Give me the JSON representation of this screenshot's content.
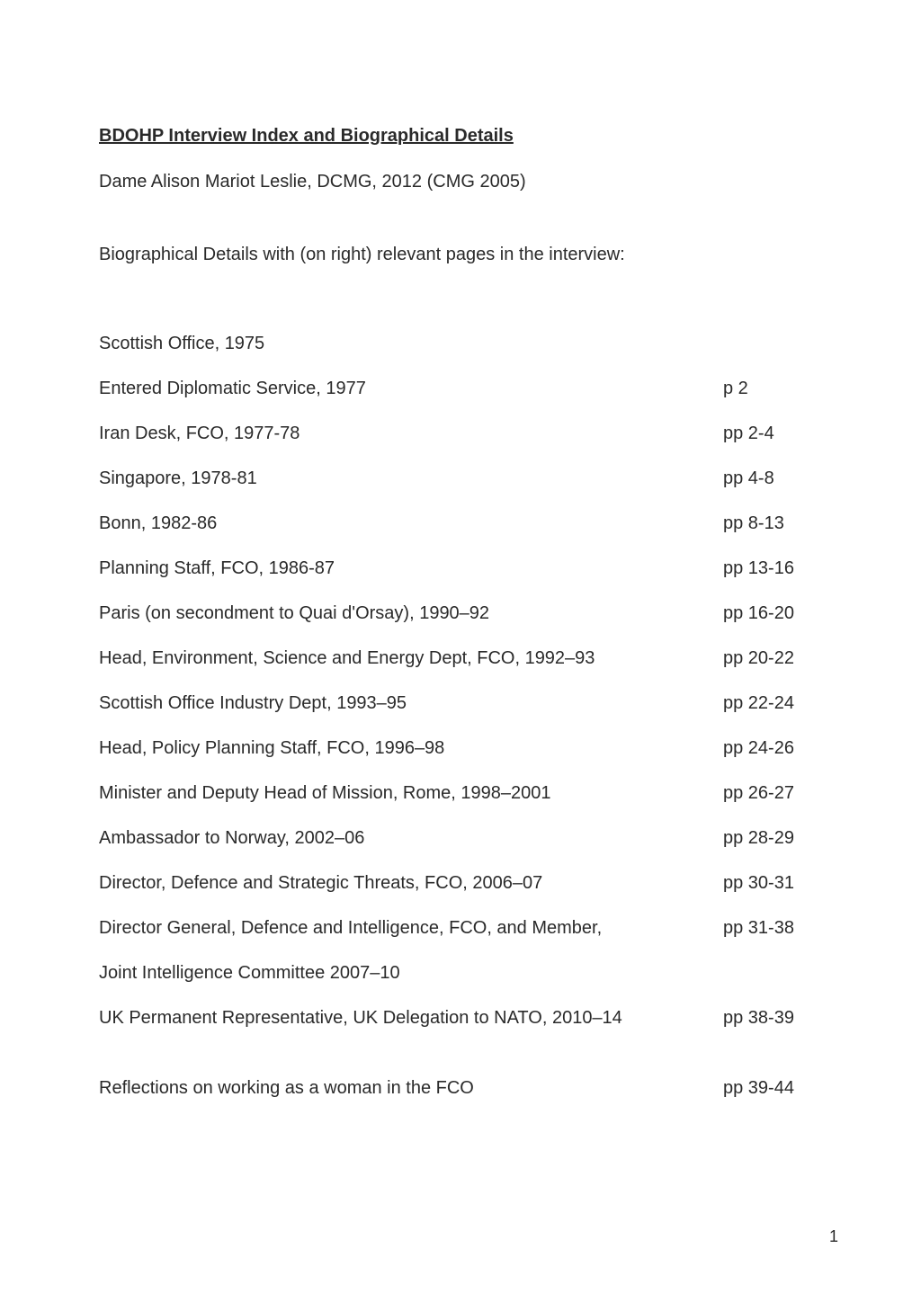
{
  "title": "BDOHP Interview Index and Biographical Details",
  "subtitle": "Dame Alison Mariot Leslie, DCMG, 2012 (CMG 2005)",
  "section_heading": "Biographical Details with (on right) relevant pages in the interview:",
  "entries": [
    {
      "label": "Scottish Office, 1975",
      "pages": ""
    },
    {
      "label": "Entered Diplomatic Service, 1977",
      "pages": "p 2"
    },
    {
      "label": "Iran Desk, FCO, 1977-78",
      "pages": "pp 2-4"
    },
    {
      "label": "Singapore, 1978-81",
      "pages": "pp 4-8"
    },
    {
      "label": "Bonn, 1982-86",
      "pages": "pp 8-13"
    },
    {
      "label": "Planning Staff, FCO, 1986-87",
      "pages": "pp 13-16"
    },
    {
      "label": "Paris (on secondment to Quai d'Orsay), 1990–92",
      "pages": "pp 16-20"
    },
    {
      "label": "Head, Environment, Science and Energy Dept, FCO, 1992–93",
      "pages": "pp 20-22"
    },
    {
      "label": "Scottish Office Industry Dept, 1993–95",
      "pages": "pp 22-24"
    },
    {
      "label": "Head, Policy Planning Staff, FCO, 1996–98",
      "pages": "pp 24-26"
    },
    {
      "label": "Minister and Deputy Head of Mission, Rome, 1998–2001",
      "pages": "pp 26-27"
    },
    {
      "label": "Ambassador to Norway, 2002–06",
      "pages": "pp 28-29"
    },
    {
      "label": "Director, Defence and Strategic Threats, FCO, 2006–07",
      "pages": "pp 30-31"
    },
    {
      "label": "Director General, Defence and Intelligence, FCO, and Member,",
      "pages": "pp 31-38"
    },
    {
      "label": "Joint Intelligence Committee 2007–10",
      "pages": ""
    },
    {
      "label": "UK Permanent Representative, UK Delegation to NATO, 2010–14",
      "pages": "pp 38-39"
    }
  ],
  "reflection_entry": {
    "label": "Reflections on working as a woman in the FCO",
    "pages": "pp 39-44"
  },
  "page_number": "1",
  "colors": {
    "background": "#ffffff",
    "text": "#2a2a2a"
  },
  "typography": {
    "body_fontsize": 20,
    "page_number_fontsize": 18,
    "font_family": "Arial"
  }
}
